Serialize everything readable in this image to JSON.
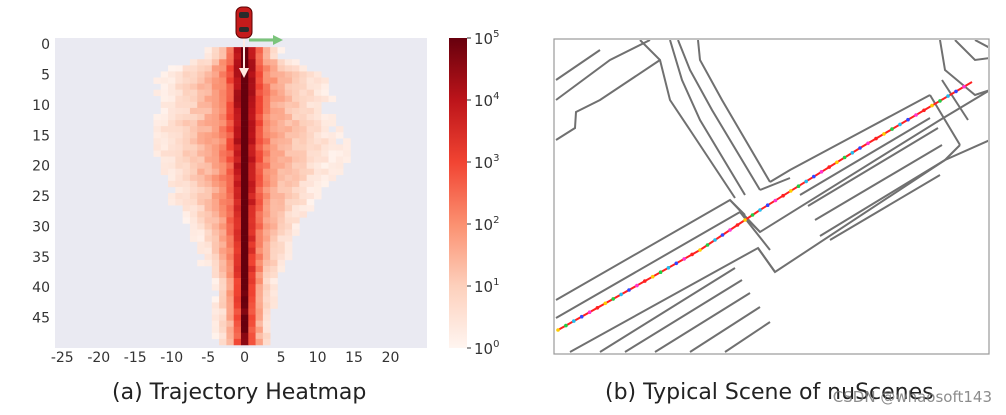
{
  "captions": {
    "a": "(a) Trajectory Heatmap",
    "b": "(b) Typical Scene of nuScenes"
  },
  "watermark": "CSDN @whaosoft143",
  "colors": {
    "panel_bg": "#eaeaf2",
    "heat_low": "#fff5f0",
    "heat_high": "#67000d",
    "road": "#707070",
    "arrow_green": "#7bc47b"
  },
  "chart_data": [
    {
      "type": "heatmap",
      "title": "",
      "xlabel": "",
      "ylabel": "",
      "xlim": [
        -26,
        25
      ],
      "ylim": [
        50,
        -1
      ],
      "x_ticks": [
        -25,
        -20,
        -15,
        -10,
        -5,
        0,
        5,
        10,
        15,
        20
      ],
      "y_ticks": [
        0,
        5,
        10,
        15,
        20,
        25,
        30,
        35,
        40,
        45
      ],
      "colorbar": {
        "scale": "log",
        "range": [
          1,
          100000
        ],
        "ticks": [
          {
            "base": "10",
            "exp": "0"
          },
          {
            "base": "10",
            "exp": "1"
          },
          {
            "base": "10",
            "exp": "2"
          },
          {
            "base": "10",
            "exp": "3"
          },
          {
            "base": "10",
            "exp": "4"
          },
          {
            "base": "10",
            "exp": "5"
          }
        ]
      },
      "rows": [
        {
          "y": 2,
          "x_min": -5,
          "x_max": 5
        },
        {
          "y": 4,
          "x_min": -10,
          "x_max": 9
        },
        {
          "y": 6,
          "x_min": -12,
          "x_max": 11
        },
        {
          "y": 8,
          "x_min": -12,
          "x_max": 12
        },
        {
          "y": 10,
          "x_min": -11,
          "x_max": 11
        },
        {
          "y": 12,
          "x_min": -12,
          "x_max": 12
        },
        {
          "y": 14,
          "x_min": -12,
          "x_max": 13
        },
        {
          "y": 16,
          "x_min": -12,
          "x_max": 14
        },
        {
          "y": 18,
          "x_min": -12,
          "x_max": 14
        },
        {
          "y": 20,
          "x_min": -11,
          "x_max": 13
        },
        {
          "y": 22,
          "x_min": -11,
          "x_max": 12
        },
        {
          "y": 24,
          "x_min": -10,
          "x_max": 10
        },
        {
          "y": 26,
          "x_min": -10,
          "x_max": 9
        },
        {
          "y": 28,
          "x_min": -9,
          "x_max": 8
        },
        {
          "y": 30,
          "x_min": -8,
          "x_max": 7
        },
        {
          "y": 32,
          "x_min": -7,
          "x_max": 6
        },
        {
          "y": 34,
          "x_min": -6,
          "x_max": 6
        },
        {
          "y": 36,
          "x_min": -6,
          "x_max": 5
        },
        {
          "y": 38,
          "x_min": -5,
          "x_max": 4
        },
        {
          "y": 40,
          "x_min": -4,
          "x_max": 4
        },
        {
          "y": 42,
          "x_min": -4,
          "x_max": 4
        },
        {
          "y": 44,
          "x_min": -4,
          "x_max": 3
        },
        {
          "y": 46,
          "x_min": -4,
          "x_max": 3
        },
        {
          "y": 48,
          "x_min": -4,
          "x_max": 3
        },
        {
          "y": 49,
          "x_min": -4,
          "x_max": 3
        }
      ],
      "center_peak_log10": 5,
      "ego_vehicle": {
        "x": 0,
        "y": 0
      },
      "legend": "none"
    }
  ]
}
